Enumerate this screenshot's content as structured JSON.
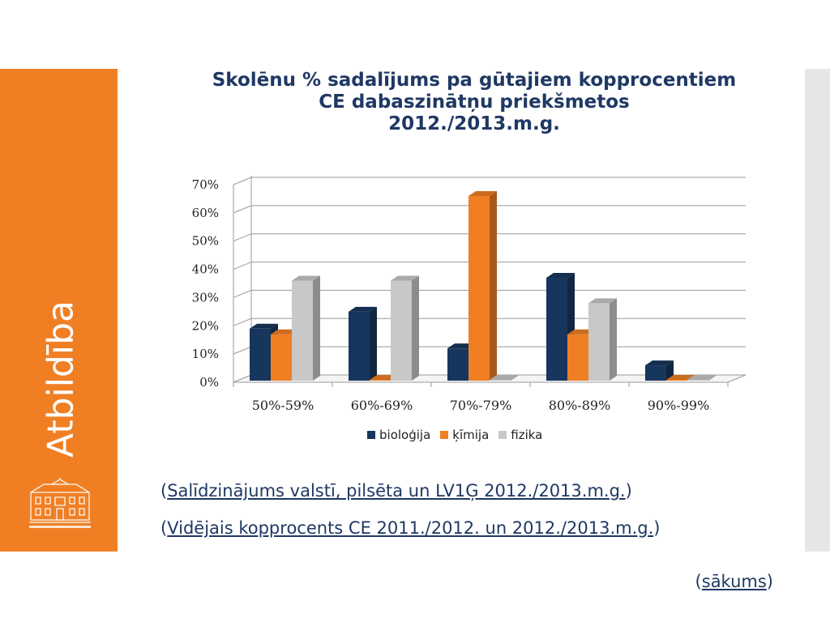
{
  "slide": {
    "side_title": "Atbildība",
    "title_lines": [
      "Skolēnu % sadalījums pa gūtajiem kopprocentiem",
      "CE dabaszinātņu priekšmetos",
      "2012./2013.m.g."
    ],
    "links": [
      {
        "open": "(",
        "text": "Salīdzinājums valstī, pilsēta un LV1Ģ 2012./2013.m.g.",
        "close": ")"
      },
      {
        "open": "(",
        "text": "Vidējais kopprocents CE 2011./2012. un 2012./2013.m.g.",
        "close": ")"
      }
    ],
    "home": {
      "open": "(",
      "text": "sākums",
      "close": ")"
    }
  },
  "colors": {
    "accent_orange": "#f07f24",
    "navy": "#1f3864",
    "biologija": "#17365d",
    "kimija": "#f07f24",
    "fizika": "#c8c8c8"
  },
  "chart_data": {
    "type": "bar",
    "categories": [
      "50%-59%",
      "60%-69%",
      "70%-79%",
      "80%-89%",
      "90%-99%"
    ],
    "series": [
      {
        "name": "bioloģija",
        "values": [
          19,
          25,
          12,
          37,
          6
        ]
      },
      {
        "name": "ķīmija",
        "values": [
          17,
          0,
          66,
          17,
          0
        ]
      },
      {
        "name": "fizika",
        "values": [
          36,
          36,
          0,
          28,
          0
        ]
      }
    ],
    "y_ticks": [
      "0%",
      "10%",
      "20%",
      "30%",
      "40%",
      "50%",
      "60%",
      "70%"
    ],
    "ylim": [
      0,
      70
    ],
    "grid": true,
    "legend_position": "bottom",
    "style": "3d-clustered-column"
  }
}
